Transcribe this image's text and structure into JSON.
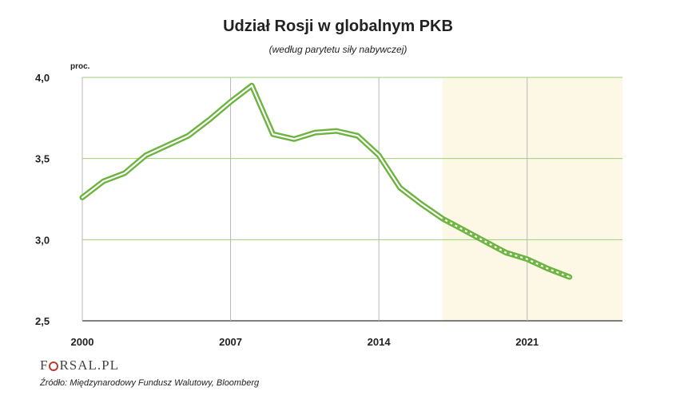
{
  "chart_data": {
    "type": "line",
    "title": "Udział Rosji w  globalnym PKB",
    "subtitle": "(według parytetu siły nabywczej)",
    "ylabel": "proc.",
    "ylim": [
      2.5,
      4.0
    ],
    "xlim": [
      2000,
      2025.5
    ],
    "yticks": [
      2.5,
      3.0,
      3.5,
      4.0
    ],
    "ytick_labels": [
      "2,5",
      "3,0",
      "3,5",
      "4,0"
    ],
    "xticks": [
      2000,
      2007,
      2014,
      2021
    ],
    "xtick_labels": [
      "2000",
      "2007",
      "2014",
      "2021"
    ],
    "forecast_from": 2017,
    "series": [
      {
        "name": "Udział Rosji w globalnym PKB",
        "x": [
          2000,
          2001,
          2002,
          2003,
          2004,
          2005,
          2006,
          2007,
          2008,
          2009,
          2010,
          2011,
          2012,
          2013,
          2014,
          2015,
          2016,
          2017,
          2018,
          2019,
          2020,
          2021,
          2022,
          2023
        ],
        "values": [
          3.26,
          3.36,
          3.41,
          3.52,
          3.58,
          3.64,
          3.74,
          3.85,
          3.95,
          3.65,
          3.62,
          3.66,
          3.67,
          3.64,
          3.52,
          3.32,
          3.22,
          3.13,
          3.06,
          2.99,
          2.92,
          2.88,
          2.82,
          2.77
        ]
      }
    ],
    "colors": {
      "line": "#6db33f",
      "grid": "#9dcf72",
      "forecast_bg": "#fdf8e6"
    }
  },
  "logo": {
    "pre": "F",
    "post": "RSAL.PL"
  },
  "source": "Źródło: Międzynarodowy Fundusz Walutowy, Bloomberg"
}
